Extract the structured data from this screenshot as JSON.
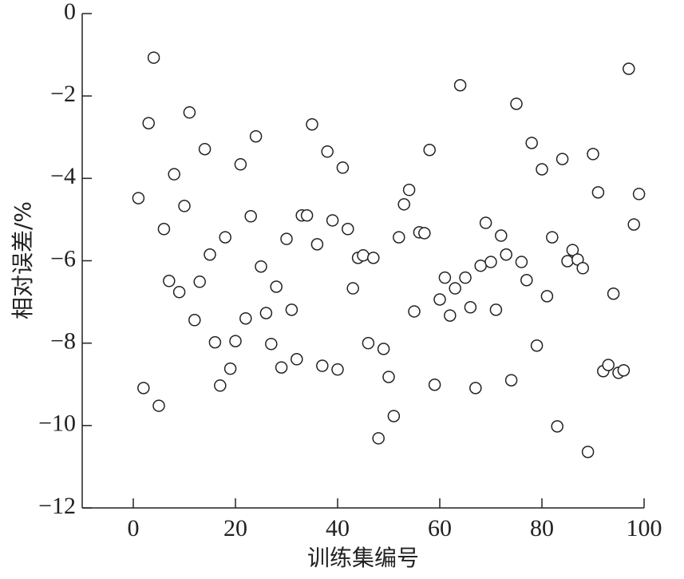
{
  "chart_data": {
    "type": "scatter",
    "x_label": "训练集编号",
    "y_label": "相对误差/%",
    "color": "#222222",
    "xlim": [
      -10,
      100
    ],
    "ylim": [
      -12,
      0
    ],
    "xticks": [
      0,
      20,
      40,
      60,
      80,
      100
    ],
    "yticks": [
      0,
      {
        "value": -2,
        "label": "−2"
      },
      {
        "value": -4,
        "label": "−4"
      },
      {
        "value": -6,
        "label": "−6"
      },
      {
        "value": -8,
        "label": "−8"
      },
      {
        "value": -10,
        "label": "−10"
      },
      {
        "value": -12,
        "label": "−12"
      }
    ],
    "x": [
      1,
      2,
      3,
      4,
      5,
      6,
      7,
      8,
      9,
      10,
      11,
      12,
      13,
      14,
      15,
      16,
      17,
      18,
      19,
      20,
      21,
      22,
      23,
      24,
      25,
      26,
      27,
      28,
      29,
      30,
      31,
      32,
      33,
      34,
      35,
      36,
      37,
      38,
      39,
      40,
      41,
      42,
      43,
      44,
      45,
      46,
      47,
      48,
      49,
      50,
      51,
      52,
      53,
      54,
      55,
      56,
      57,
      58,
      59,
      60,
      61,
      62,
      63,
      64,
      65,
      66,
      67,
      68,
      69,
      70,
      71,
      72,
      73,
      74,
      75,
      76,
      77,
      78,
      79,
      80,
      81,
      82,
      83,
      84,
      85,
      86,
      87,
      88,
      89,
      90,
      91,
      92,
      93,
      94,
      95,
      96,
      97,
      98,
      99
    ],
    "y": [
      -4.48,
      -9.09,
      -2.66,
      -1.07,
      -9.52,
      -5.23,
      -6.49,
      -3.9,
      -6.76,
      -4.67,
      -2.4,
      -7.44,
      -6.51,
      -3.29,
      -5.85,
      -7.98,
      -9.03,
      -5.43,
      -8.62,
      -7.95,
      -3.66,
      -7.4,
      -4.92,
      -2.98,
      -6.14,
      -7.27,
      -8.02,
      -6.63,
      -8.59,
      -5.47,
      -7.19,
      -8.39,
      -4.9,
      -4.9,
      -2.69,
      -5.6,
      -8.55,
      -3.35,
      -5.02,
      -8.64,
      -3.74,
      -5.23,
      -6.67,
      -5.93,
      -5.87,
      -8.0,
      -5.93,
      -10.31,
      -8.14,
      -8.82,
      -9.77,
      -5.43,
      -4.63,
      -4.28,
      -7.23,
      -5.31,
      -5.33,
      -3.31,
      -9.01,
      -6.94,
      -6.41,
      -7.33,
      -6.67,
      -1.74,
      -6.41,
      -7.13,
      -9.09,
      -6.12,
      -5.08,
      -6.03,
      -7.19,
      -5.39,
      -5.85,
      -8.9,
      -2.19,
      -6.03,
      -6.47,
      -3.14,
      -8.06,
      -3.78,
      -6.86,
      -5.43,
      -10.02,
      -3.53,
      -6.01,
      -5.74,
      -5.97,
      -6.18,
      -10.64,
      -3.41,
      -4.34,
      -8.68,
      -8.53,
      -6.8,
      -8.72,
      -8.66,
      -1.34,
      -5.12,
      -4.38
    ]
  }
}
